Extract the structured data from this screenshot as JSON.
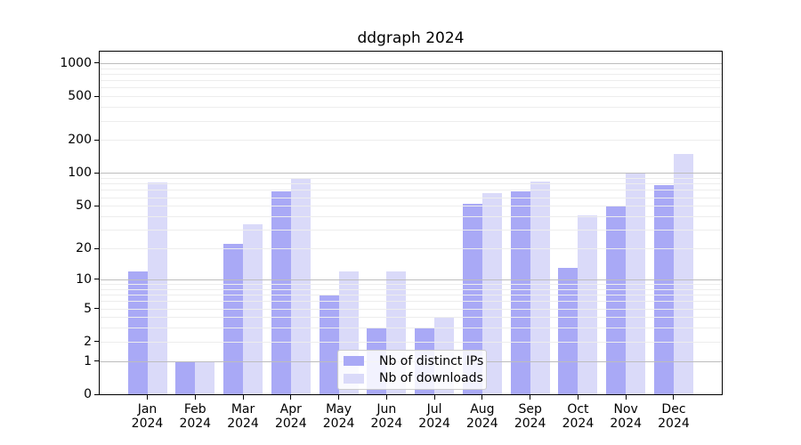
{
  "title": "ddgraph 2024",
  "chart_data": {
    "type": "bar",
    "title": "ddgraph 2024",
    "categories": [
      "Jan",
      "Feb",
      "Mar",
      "Apr",
      "May",
      "Jun",
      "Jul",
      "Aug",
      "Sep",
      "Oct",
      "Nov",
      "Dec"
    ],
    "year": "2024",
    "series": [
      {
        "name": "Nb of distinct IPs",
        "color": "#a9a9f6",
        "values": [
          12,
          1,
          22,
          68,
          7,
          3,
          3,
          52,
          68,
          13,
          49,
          78
        ]
      },
      {
        "name": "Nb of downloads",
        "color": "#dadaf9",
        "values": [
          82,
          1,
          34,
          90,
          12,
          12,
          4,
          66,
          83,
          41,
          100,
          150
        ]
      }
    ],
    "xlabel": "",
    "ylabel": "",
    "y_ticks": [
      0,
      1,
      2,
      5,
      10,
      20,
      50,
      100,
      200,
      500,
      1000
    ],
    "y_scale": "log1p",
    "y_axis_top_log": 3.105,
    "grid": "major-and-minor-horizontal",
    "legend_position": "bottom-center",
    "colors": {
      "grid_major": "#bdbdbd",
      "grid_minor": "#ededed",
      "axis": "#000000",
      "background": "#ffffff"
    }
  }
}
